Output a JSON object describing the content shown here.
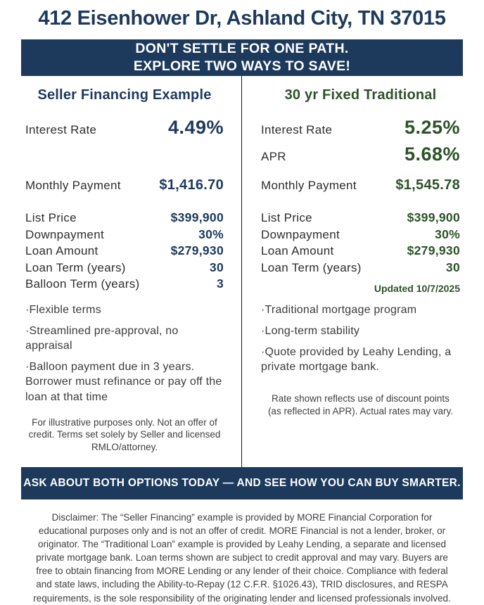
{
  "colors": {
    "navy": "#1d3a5c",
    "green": "#2d5228"
  },
  "header": {
    "address": "412 Eisenhower Dr, Ashland City, TN 37015",
    "banner_line1": "DON'T SETTLE FOR ONE PATH.",
    "banner_line2": "EXPLORE TWO WAYS TO SAVE!"
  },
  "seller": {
    "title": "Seller Financing Example",
    "interest_rate_label": "Interest Rate",
    "interest_rate_value": "4.49%",
    "monthly_label": "Monthly Payment",
    "monthly_value": "$1,416.70",
    "details": [
      {
        "label": "List Price",
        "value": "$399,900"
      },
      {
        "label": "Downpayment",
        "value": "30%"
      },
      {
        "label": "Loan Amount",
        "value": "$279,930"
      },
      {
        "label": "Loan Term (years)",
        "value": "30"
      },
      {
        "label": "Balloon Term (years)",
        "value": "3"
      }
    ],
    "bullets": [
      "Flexible terms",
      "Streamlined pre-approval, no appraisal",
      "Balloon payment due in 3 years. Borrower must refinance or pay off the loan at that time"
    ],
    "fine_print": "For illustrative purposes only.  Not an offer of credit. Terms set solely by Seller and licensed RMLO/attorney."
  },
  "traditional": {
    "title": "30 yr Fixed Traditional",
    "interest_rate_label": "Interest Rate",
    "interest_rate_value": "5.25%",
    "apr_label": "APR",
    "apr_value": "5.68%",
    "monthly_label": "Monthly Payment",
    "monthly_value": "$1,545.78",
    "details": [
      {
        "label": "List Price",
        "value": "$399,900"
      },
      {
        "label": "Downpayment",
        "value": "30%"
      },
      {
        "label": "Loan Amount",
        "value": "$279,930"
      },
      {
        "label": "Loan Term (years)",
        "value": "30"
      }
    ],
    "updated": "Updated 10/7/2025",
    "bullets": [
      "Traditional mortgage program",
      "Long-term stability",
      "Quote provided by Leahy Lending, a private mortgage bank."
    ],
    "fine_print": "Rate shown reflects use of discount points (as reflected in APR). Actual rates may vary."
  },
  "footer": {
    "banner": "ASK ABOUT BOTH OPTIONS TODAY — AND SEE HOW YOU CAN BUY SMARTER.",
    "disclaimer": "Disclaimer: The “Seller Financing” example is provided by MORE Financial Corporation for educational purposes only and is not an offer of credit. MORE Financial is not a lender, broker, or originator. The “Traditional Loan” example is provided by Leahy Lending, a separate and licensed private mortgage bank. Loan terms shown are subject to credit approval and may vary. Buyers are free to obtain financing from MORE Lending or any lender of their choice. Compliance with federal and state laws, including the Ability-to-Repay (12 C.F.R. §1026.43), TRID disclosures, and RESPA requirements, is the sole responsibility of the originating lender and licensed professionals involved."
  }
}
